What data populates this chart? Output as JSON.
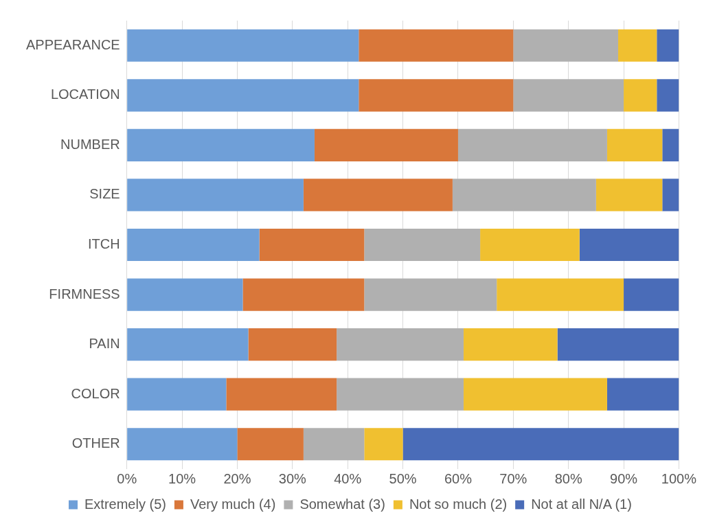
{
  "chart_data": {
    "type": "bar",
    "orientation": "horizontal",
    "stacked": true,
    "categories": [
      "APPEARANCE",
      "LOCATION",
      "NUMBER",
      "SIZE",
      "ITCH",
      "FIRMNESS",
      "PAIN",
      "COLOR",
      "OTHER"
    ],
    "series": [
      {
        "name": "Extremely (5)",
        "color": "#6f9fd8",
        "values": [
          42,
          42,
          34,
          32,
          24,
          21,
          22,
          18,
          20
        ]
      },
      {
        "name": "Very much (4)",
        "color": "#d9773a",
        "values": [
          28,
          28,
          26,
          27,
          19,
          22,
          16,
          20,
          12
        ]
      },
      {
        "name": "Somewhat (3)",
        "color": "#b0b0b0",
        "values": [
          19,
          20,
          27,
          26,
          21,
          24,
          23,
          23,
          11
        ]
      },
      {
        "name": "Not so much (2)",
        "color": "#f0c030",
        "values": [
          7,
          6,
          10,
          12,
          18,
          23,
          17,
          26,
          7
        ]
      },
      {
        "name": "Not at all N/A (1)",
        "color": "#4a6cb8",
        "values": [
          4,
          4,
          3,
          3,
          18,
          10,
          22,
          13,
          50
        ]
      }
    ],
    "xlim": [
      0,
      100
    ],
    "xticks": [
      {
        "value": 0,
        "label": "0%"
      },
      {
        "value": 10,
        "label": "10%"
      },
      {
        "value": 20,
        "label": "20%"
      },
      {
        "value": 30,
        "label": "30%"
      },
      {
        "value": 40,
        "label": "40%"
      },
      {
        "value": 50,
        "label": "50%"
      },
      {
        "value": 60,
        "label": "60%"
      },
      {
        "value": 70,
        "label": "70%"
      },
      {
        "value": 80,
        "label": "80%"
      },
      {
        "value": 90,
        "label": "90%"
      },
      {
        "value": 100,
        "label": "100%"
      }
    ],
    "grid": "x",
    "legend": "bottom"
  }
}
